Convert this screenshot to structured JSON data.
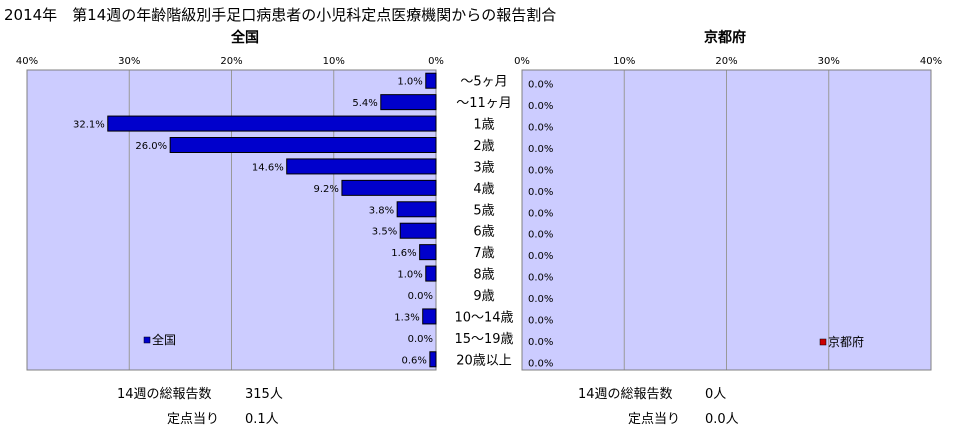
{
  "header": {
    "title": "2014年　第14週の年齢階級別手足口病患者の小児科定点医療機関からの報告割合"
  },
  "colors": {
    "plot_bg": "#ccccff",
    "national_bar": "#0000cc",
    "kyoto_marker": "#cc0000",
    "grid": "#999999"
  },
  "chart_data": [
    {
      "type": "bar",
      "orientation": "horizontal",
      "title": "全国",
      "categories": [
        "～5ヶ月",
        "～11ヶ月",
        "1歳",
        "2歳",
        "3歳",
        "4歳",
        "5歳",
        "6歳",
        "7歳",
        "8歳",
        "9歳",
        "10～14歳",
        "15～19歳",
        "20歳以上"
      ],
      "series": [
        {
          "name": "全国",
          "values": [
            1.0,
            5.4,
            32.1,
            26.0,
            14.6,
            9.2,
            3.8,
            3.5,
            1.6,
            1.0,
            0.0,
            1.3,
            0.0,
            0.6
          ],
          "labels": [
            "1.0%",
            "5.4%",
            "32.1%",
            "26.0%",
            "14.6%",
            "9.2%",
            "3.8%",
            "3.5%",
            "1.6%",
            "1.0%",
            "0.0%",
            "1.3%",
            "0.0%",
            "0.6%"
          ]
        }
      ],
      "xlim": [
        0,
        40
      ],
      "x_reversed": true,
      "ticks": [
        "40%",
        "30%",
        "20%",
        "10%",
        "0%"
      ],
      "tick_values": [
        40,
        30,
        20,
        10,
        0
      ],
      "grid": true,
      "legend": "bottom-left"
    },
    {
      "type": "bar",
      "orientation": "horizontal",
      "title": "京都府",
      "categories": [
        "～5ヶ月",
        "～11ヶ月",
        "1歳",
        "2歳",
        "3歳",
        "4歳",
        "5歳",
        "6歳",
        "7歳",
        "8歳",
        "9歳",
        "10～14歳",
        "15～19歳",
        "20歳以上"
      ],
      "series": [
        {
          "name": "京都府",
          "values": [
            0,
            0,
            0,
            0,
            0,
            0,
            0,
            0,
            0,
            0,
            0,
            0,
            0,
            0
          ],
          "labels": [
            "0.0%",
            "0.0%",
            "0.0%",
            "0.0%",
            "0.0%",
            "0.0%",
            "0.0%",
            "0.0%",
            "0.0%",
            "0.0%",
            "0.0%",
            "0.0%",
            "0.0%",
            "0.0%"
          ]
        }
      ],
      "xlim": [
        0,
        40
      ],
      "x_reversed": false,
      "ticks": [
        "0%",
        "10%",
        "20%",
        "30%",
        "40%"
      ],
      "tick_values": [
        0,
        10,
        20,
        30,
        40
      ],
      "grid": true,
      "legend": "bottom-right"
    }
  ],
  "stats": {
    "national": {
      "total_label": "14週の総報告数",
      "total_value": "315人",
      "per_label": "定点当り",
      "per_value": "0.1人"
    },
    "kyoto": {
      "total_label": "14週の総報告数",
      "total_value": "0人",
      "per_label": "定点当り",
      "per_value": "0.0人"
    }
  }
}
